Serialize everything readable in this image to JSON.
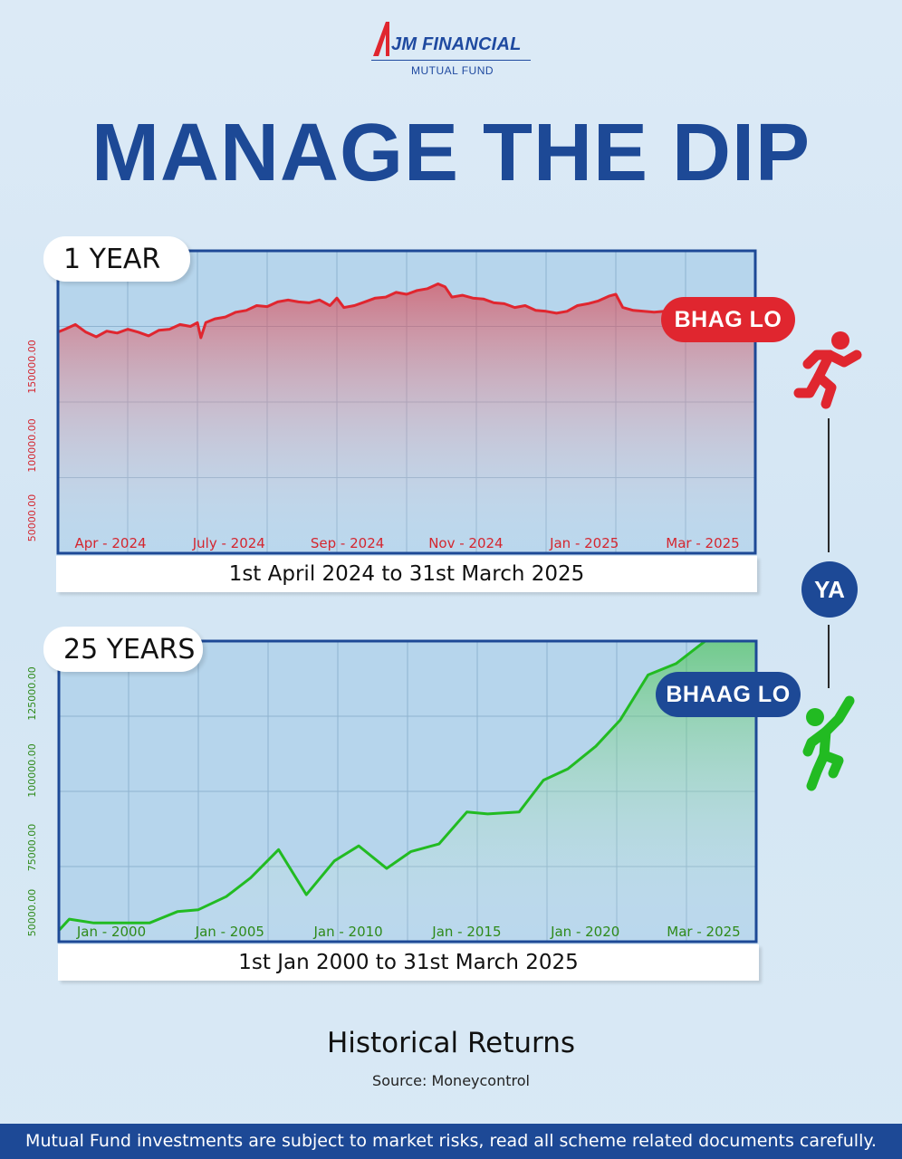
{
  "brand": {
    "name": "JM FINANCIAL",
    "sub": "MUTUAL FUND"
  },
  "headline": "MANAGE THE DIP",
  "panels": {
    "short": {
      "tag": "1 YEAR",
      "period": "1st April 2024 to 31st March 2025",
      "action": "BHAG LO"
    },
    "long": {
      "tag": "25 YEARS",
      "period": "1st Jan 2000 to 31st March 2025",
      "action": "BHAAG LO"
    }
  },
  "connector": "YA",
  "footer": {
    "title": "Historical Returns",
    "source": "Source: Moneycontrol",
    "disclaimer": "Mutual Fund investments are subject to market risks, read all scheme related documents carefully."
  },
  "colors": {
    "brand": "#1d4996",
    "short_series": "#e0262f",
    "long_series": "#22bb22",
    "plot_bg": "#b6d5ec"
  },
  "chart_data": [
    {
      "type": "area",
      "x_ticks": [
        "Apr - 2024",
        "July - 2024",
        "Sep - 2024",
        "Nov - 2024",
        "Jan - 2025",
        "Mar - 2025"
      ],
      "y_ticks": [
        "50000.00",
        "100000.00",
        "150000.00"
      ],
      "ylim": [
        30000,
        190000
      ],
      "grid": true,
      "points": [
        [
          0,
          147000
        ],
        [
          0.01,
          148500
        ],
        [
          0.025,
          151000
        ],
        [
          0.04,
          147000
        ],
        [
          0.055,
          144500
        ],
        [
          0.07,
          147500
        ],
        [
          0.085,
          146500
        ],
        [
          0.1,
          148500
        ],
        [
          0.115,
          147000
        ],
        [
          0.13,
          145000
        ],
        [
          0.145,
          148000
        ],
        [
          0.16,
          148500
        ],
        [
          0.175,
          151000
        ],
        [
          0.19,
          150000
        ],
        [
          0.2,
          152000
        ],
        [
          0.205,
          144000
        ],
        [
          0.212,
          152000
        ],
        [
          0.225,
          154000
        ],
        [
          0.24,
          155000
        ],
        [
          0.255,
          157500
        ],
        [
          0.27,
          158500
        ],
        [
          0.285,
          161000
        ],
        [
          0.3,
          160500
        ],
        [
          0.315,
          163000
        ],
        [
          0.33,
          164000
        ],
        [
          0.345,
          163000
        ],
        [
          0.36,
          162500
        ],
        [
          0.375,
          164000
        ],
        [
          0.39,
          161000
        ],
        [
          0.4,
          165000
        ],
        [
          0.41,
          160000
        ],
        [
          0.425,
          161000
        ],
        [
          0.44,
          163000
        ],
        [
          0.455,
          165000
        ],
        [
          0.47,
          165500
        ],
        [
          0.485,
          168000
        ],
        [
          0.5,
          167000
        ],
        [
          0.515,
          169000
        ],
        [
          0.53,
          170000
        ],
        [
          0.545,
          172500
        ],
        [
          0.555,
          171000
        ],
        [
          0.565,
          165500
        ],
        [
          0.58,
          166500
        ],
        [
          0.595,
          165000
        ],
        [
          0.61,
          164500
        ],
        [
          0.625,
          162500
        ],
        [
          0.64,
          162000
        ],
        [
          0.655,
          160000
        ],
        [
          0.67,
          161000
        ],
        [
          0.685,
          158500
        ],
        [
          0.7,
          158000
        ],
        [
          0.715,
          157000
        ],
        [
          0.73,
          158000
        ],
        [
          0.745,
          161000
        ],
        [
          0.76,
          162000
        ],
        [
          0.775,
          163500
        ],
        [
          0.79,
          166000
        ],
        [
          0.8,
          167000
        ],
        [
          0.81,
          160000
        ],
        [
          0.825,
          158500
        ],
        [
          0.84,
          158000
        ],
        [
          0.855,
          157500
        ],
        [
          0.87,
          158000
        ],
        [
          0.885,
          156000
        ],
        [
          0.9,
          156500
        ],
        [
          0.915,
          155000
        ],
        [
          0.93,
          154000
        ],
        [
          0.945,
          155000
        ],
        [
          0.96,
          154000
        ],
        [
          0.975,
          152500
        ],
        [
          0.99,
          152000
        ],
        [
          1.0,
          153000
        ]
      ]
    },
    {
      "type": "area",
      "x_ticks": [
        "Jan - 2000",
        "Jan - 2005",
        "Jan - 2010",
        "Jan - 2015",
        "Jan - 2020",
        "Mar - 2025"
      ],
      "y_ticks": [
        "50000.00",
        "75000.00",
        "100000.00",
        "125000.00"
      ],
      "ylim": [
        45000,
        125000
      ],
      "grid": true,
      "points": [
        [
          0,
          48000
        ],
        [
          0.015,
          51000
        ],
        [
          0.05,
          50000
        ],
        [
          0.09,
          50000
        ],
        [
          0.13,
          50000
        ],
        [
          0.17,
          53000
        ],
        [
          0.2,
          53500
        ],
        [
          0.24,
          57000
        ],
        [
          0.275,
          62000
        ],
        [
          0.315,
          69500
        ],
        [
          0.355,
          57500
        ],
        [
          0.395,
          66500
        ],
        [
          0.43,
          70500
        ],
        [
          0.47,
          64500
        ],
        [
          0.505,
          69000
        ],
        [
          0.545,
          71000
        ],
        [
          0.585,
          79500
        ],
        [
          0.615,
          79000
        ],
        [
          0.66,
          79500
        ],
        [
          0.695,
          88000
        ],
        [
          0.73,
          91000
        ],
        [
          0.77,
          97000
        ],
        [
          0.805,
          104000
        ],
        [
          0.845,
          116000
        ],
        [
          0.885,
          119000
        ],
        [
          0.92,
          124000
        ],
        [
          0.955,
          129000
        ],
        [
          1.0,
          131000
        ]
      ]
    }
  ]
}
